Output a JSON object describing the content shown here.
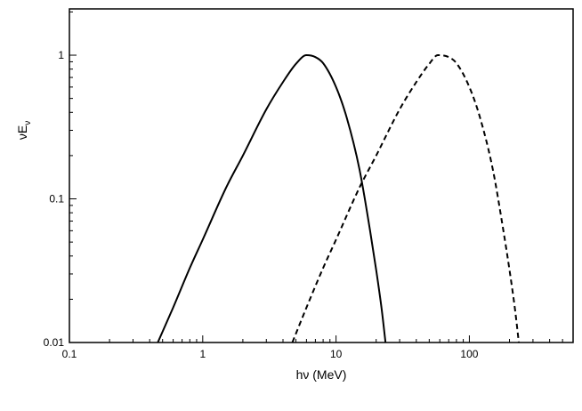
{
  "chart_data": {
    "type": "line",
    "xscale": "log",
    "yscale": "log",
    "xlim": [
      0.1,
      600
    ],
    "ylim": [
      0.01,
      2.1
    ],
    "xlabel": "hν (MeV)",
    "ylabel_main": "νE",
    "ylabel_sub": "ν",
    "xticks": [
      {
        "value": 0.1,
        "label": "0.1"
      },
      {
        "value": 1,
        "label": "1"
      },
      {
        "value": 10,
        "label": "10"
      },
      {
        "value": 100,
        "label": "100"
      }
    ],
    "yticks": [
      {
        "value": 0.01,
        "label": "0.01"
      },
      {
        "value": 0.1,
        "label": "0.1"
      },
      {
        "value": 1,
        "label": "1"
      }
    ],
    "grid": false,
    "legend": "none",
    "series": [
      {
        "style": "solid",
        "color": "#000000",
        "x": [
          0.46,
          0.6,
          0.8,
          1.0,
          1.5,
          2.0,
          3.0,
          4.0,
          5.0,
          6.0,
          7.0,
          8.0,
          10.0,
          12.0,
          15.0,
          18.0,
          20.0,
          22.0,
          23.5
        ],
        "y": [
          0.01,
          0.0175,
          0.033,
          0.052,
          0.12,
          0.2,
          0.42,
          0.65,
          0.87,
          1.0,
          0.97,
          0.88,
          0.6,
          0.37,
          0.16,
          0.06,
          0.032,
          0.017,
          0.01
        ]
      },
      {
        "style": "dashed",
        "color": "#000000",
        "x": [
          4.7,
          6.0,
          8.0,
          10.0,
          15.0,
          20.0,
          30.0,
          40.0,
          50.0,
          58.0,
          70.0,
          80.0,
          100.0,
          120.0,
          150.0,
          180.0,
          200.0,
          220.0,
          235.0
        ],
        "y": [
          0.01,
          0.0175,
          0.033,
          0.052,
          0.12,
          0.2,
          0.42,
          0.65,
          0.87,
          1.0,
          0.97,
          0.88,
          0.6,
          0.37,
          0.16,
          0.06,
          0.032,
          0.017,
          0.01
        ]
      }
    ]
  }
}
